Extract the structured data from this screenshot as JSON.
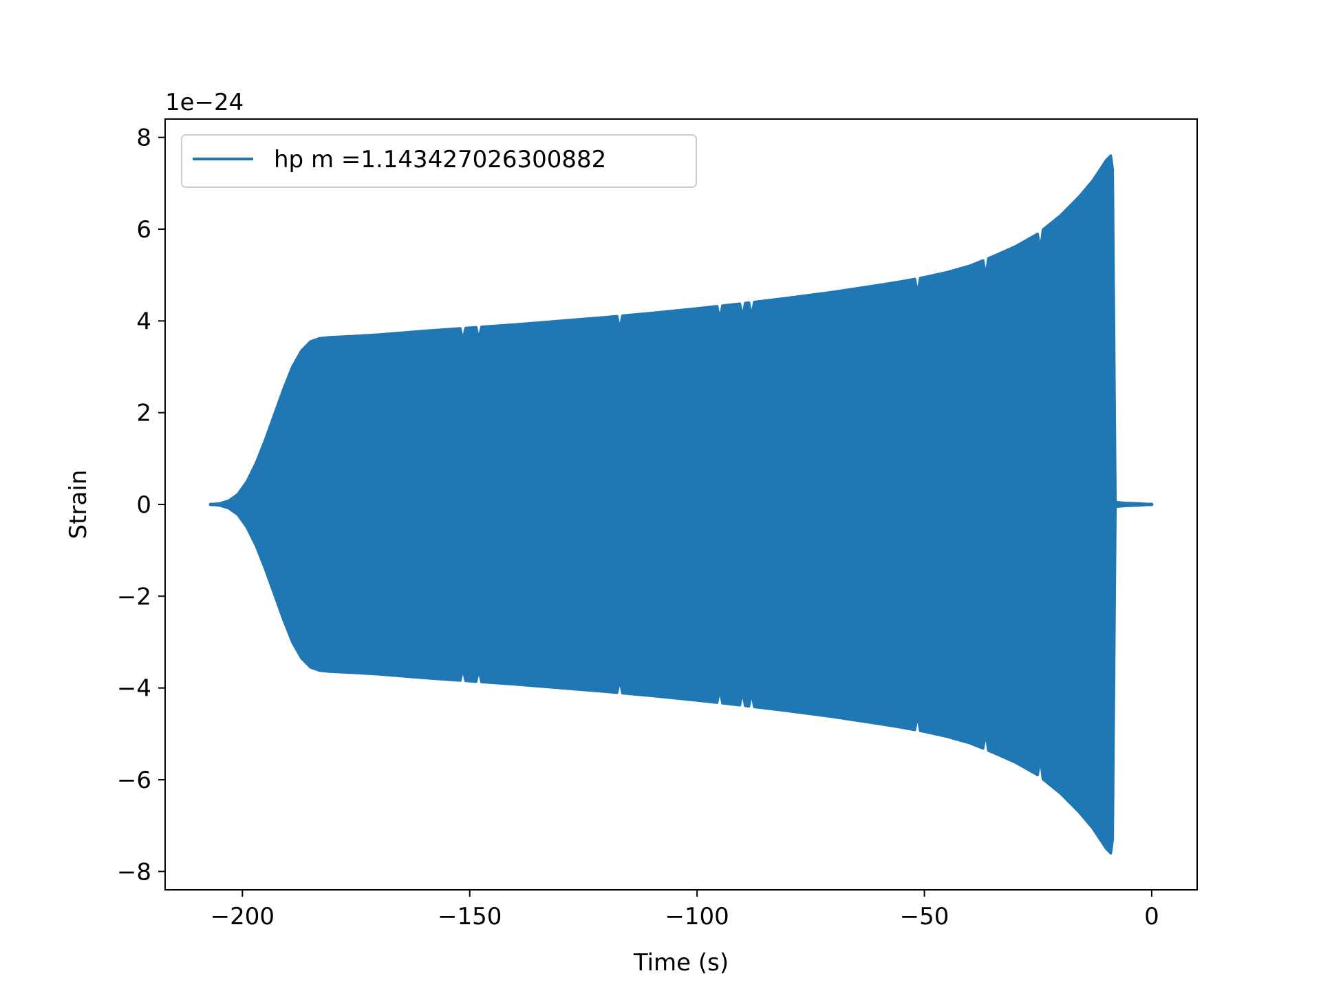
{
  "chart_data": {
    "type": "line",
    "xlabel": "Time (s)",
    "ylabel": "Strain",
    "y_multiplier_label": "1e−24",
    "y_multiplier": 1e-24,
    "xlim": [
      -217,
      10
    ],
    "ylim": [
      -8.4,
      8.4
    ],
    "x_ticks": [
      -200,
      -150,
      -100,
      -50,
      0
    ],
    "x_tick_labels": [
      "−200",
      "−150",
      "−100",
      "−50",
      "0"
    ],
    "y_ticks": [
      -8,
      -6,
      -4,
      -2,
      0,
      2,
      4,
      6,
      8
    ],
    "y_tick_labels": [
      "−8",
      "−6",
      "−4",
      "−2",
      "0",
      "2",
      "4",
      "6",
      "8"
    ],
    "grid": false,
    "legend_position": "upper-left",
    "series": [
      {
        "name": "hp m =1.143427026300882",
        "color": "#1f77b4",
        "envelope_x": [
          -207,
          -205,
          -203,
          -201,
          -199,
          -197,
          -195,
          -193,
          -191,
          -189,
          -187,
          -185,
          -183,
          -181,
          -179,
          -175,
          -170,
          -160,
          -150,
          -140,
          -130,
          -120,
          -110,
          -100,
          -90,
          -80,
          -70,
          -60,
          -55,
          -50,
          -45,
          -40,
          -35,
          -30,
          -25,
          -20,
          -16,
          -13,
          -11,
          -10,
          -9,
          -8.6,
          -8,
          -6,
          -3,
          0
        ],
        "envelope_y": [
          0.0,
          0.02,
          0.08,
          0.22,
          0.5,
          0.9,
          1.4,
          1.95,
          2.5,
          3.0,
          3.35,
          3.55,
          3.62,
          3.64,
          3.65,
          3.67,
          3.7,
          3.78,
          3.85,
          3.92,
          4.0,
          4.08,
          4.17,
          4.27,
          4.38,
          4.5,
          4.63,
          4.78,
          4.86,
          4.95,
          5.06,
          5.2,
          5.4,
          5.62,
          5.9,
          6.3,
          6.7,
          7.05,
          7.35,
          7.5,
          7.6,
          7.3,
          0.05,
          0.03,
          0.02,
          0.0
        ],
        "notch_x": [
          -151.5,
          -148,
          -117,
          -95,
          -90,
          -88,
          -51.5,
          -36.5,
          -24.5
        ]
      }
    ]
  }
}
